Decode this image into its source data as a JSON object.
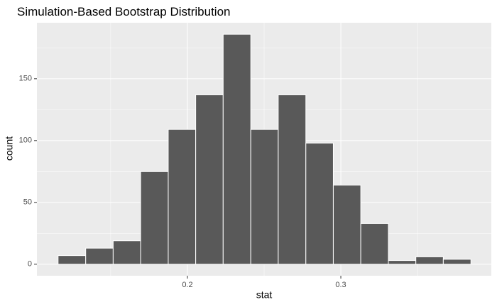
{
  "chart_data": {
    "type": "histogram",
    "title": "Simulation-Based Bootstrap Distribution",
    "x_label": "stat",
    "y_label": "count",
    "bins": [
      0.1157,
      0.1337,
      0.1516,
      0.1695,
      0.1875,
      0.2054,
      0.2233,
      0.2413,
      0.2592,
      0.2772,
      0.2951,
      0.313,
      0.331,
      0.3489,
      0.3668,
      0.3848
    ],
    "values": [
      7,
      13,
      19,
      75,
      109,
      137,
      186,
      109,
      137,
      98,
      64,
      33,
      3,
      6,
      4
    ],
    "color": "#595959",
    "edge_color": "#ffffff",
    "panel_color": "#ebebeb",
    "xlim": [
      0.1019,
      0.3981
    ],
    "ylim": [
      -9.3,
      195.3
    ],
    "xticks": [
      0.2,
      0.3
    ],
    "yticks": [
      0,
      50,
      100,
      150
    ],
    "xminor": [
      0.15,
      0.25,
      0.35
    ],
    "yminor": [
      25,
      75,
      125,
      175
    ],
    "grid": true
  }
}
